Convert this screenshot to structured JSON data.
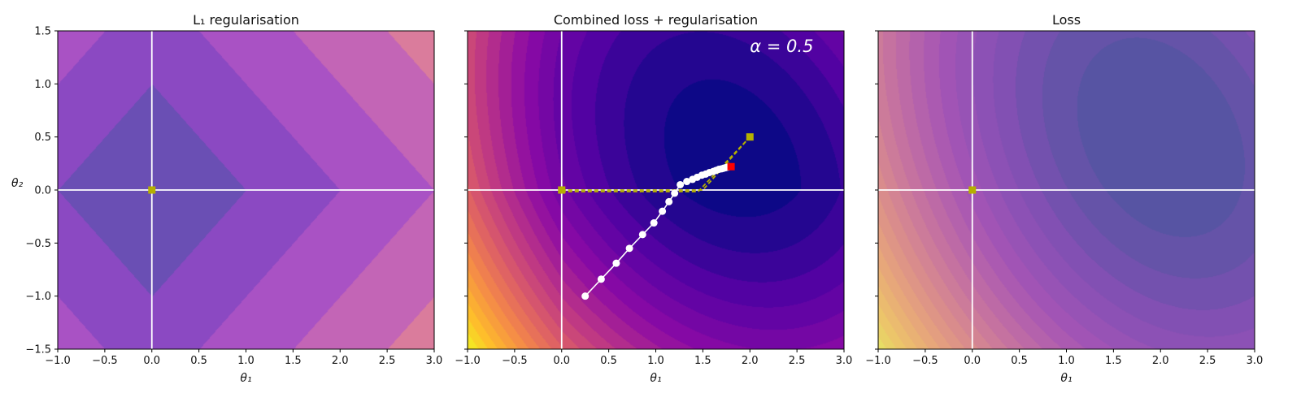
{
  "chart_data": [
    {
      "type": "contour",
      "title": "L₁ regularisation",
      "xlabel": "θ₁",
      "ylabel": "θ₂",
      "xlim": [
        -1.0,
        3.0
      ],
      "ylim": [
        -1.5,
        1.5
      ],
      "x_ticks": [
        "−1.0",
        "−0.5",
        "0.0",
        "0.5",
        "1.0",
        "1.5",
        "2.0",
        "2.5",
        "3.0"
      ],
      "y_ticks": [
        "1.5",
        "1.0",
        "0.5",
        "0.0",
        "−0.5",
        "−1.0",
        "−1.5"
      ],
      "show_yticklabels": true,
      "field": "l1",
      "contour_levels": [
        0,
        1,
        2,
        3,
        4,
        5
      ],
      "colors": [
        "#6a4fb4",
        "#8b49c2",
        "#a952c4",
        "#c365b6",
        "#da7c9c"
      ],
      "axes_lines": true,
      "markers": [
        {
          "x": 0.0,
          "y": 0.0,
          "shape": "square",
          "color": "#b5b000"
        }
      ],
      "annotation": "",
      "path": []
    },
    {
      "type": "contour",
      "title": "Combined loss + regularisation",
      "xlabel": "θ₁",
      "ylabel": "",
      "xlim": [
        -1.0,
        3.0
      ],
      "ylim": [
        -1.5,
        1.5
      ],
      "x_ticks": [
        "−1.0",
        "−0.5",
        "0.0",
        "0.5",
        "1.0",
        "1.5",
        "2.0",
        "2.5",
        "3.0"
      ],
      "y_ticks": [
        "1.5",
        "1.0",
        "0.5",
        "0.0",
        "−0.5",
        "−1.0",
        "−1.5"
      ],
      "show_yticklabels": false,
      "field": "combined",
      "alpha": 0.5,
      "annotation": "α = 0.5",
      "axes_lines": true,
      "markers": [
        {
          "x": 0.0,
          "y": 0.0,
          "shape": "square",
          "color": "#b5b000"
        },
        {
          "x": 2.0,
          "y": 0.5,
          "shape": "square",
          "color": "#b5b000"
        },
        {
          "x": 1.8,
          "y": 0.22,
          "shape": "square",
          "color": "#ff0000"
        }
      ],
      "dashed_paths": [
        [
          [
            0.0,
            0.0
          ],
          [
            1.5,
            0.0
          ],
          [
            2.0,
            0.5
          ]
        ],
        [
          [
            0.0,
            -0.015
          ],
          [
            1.45,
            -0.015
          ],
          [
            2.0,
            0.5
          ]
        ]
      ],
      "path": [
        [
          0.25,
          -1.0
        ],
        [
          0.42,
          -0.84
        ],
        [
          0.58,
          -0.69
        ],
        [
          0.72,
          -0.55
        ],
        [
          0.86,
          -0.42
        ],
        [
          0.98,
          -0.31
        ],
        [
          1.07,
          -0.2
        ],
        [
          1.14,
          -0.11
        ],
        [
          1.2,
          -0.03
        ],
        [
          1.26,
          0.05
        ],
        [
          1.33,
          0.08
        ],
        [
          1.39,
          0.1
        ],
        [
          1.44,
          0.12
        ],
        [
          1.49,
          0.14
        ],
        [
          1.53,
          0.15
        ],
        [
          1.57,
          0.165
        ],
        [
          1.61,
          0.175
        ],
        [
          1.64,
          0.185
        ],
        [
          1.67,
          0.195
        ],
        [
          1.7,
          0.2
        ],
        [
          1.72,
          0.205
        ],
        [
          1.74,
          0.21
        ],
        [
          1.76,
          0.215
        ],
        [
          1.78,
          0.22
        ]
      ]
    },
    {
      "type": "contour",
      "title": "Loss",
      "xlabel": "θ₁",
      "ylabel": "",
      "xlim": [
        -1.0,
        3.0
      ],
      "ylim": [
        -1.5,
        1.5
      ],
      "x_ticks": [
        "−1.0",
        "−0.5",
        "0.0",
        "0.5",
        "1.0",
        "1.5",
        "2.0",
        "2.5",
        "3.0"
      ],
      "y_ticks": [
        "1.5",
        "1.0",
        "0.5",
        "0.0",
        "−0.5",
        "−1.0",
        "−1.5"
      ],
      "show_yticklabels": false,
      "field": "loss",
      "annotation": "",
      "axes_lines": true,
      "markers": [
        {
          "x": 0.0,
          "y": 0.0,
          "shape": "square",
          "color": "#b5b000"
        }
      ],
      "path": []
    }
  ]
}
